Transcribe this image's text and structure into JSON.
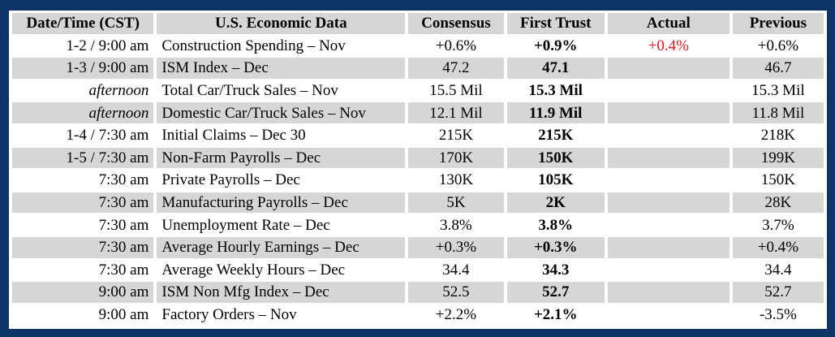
{
  "colors": {
    "border": "#0f3468",
    "shade": "#d6d6d6",
    "actual_highlight": "#e8141b"
  },
  "headers": {
    "date": "Date/Time (CST)",
    "name": "U.S. Economic Data",
    "consensus": "Consensus",
    "first_trust": "First Trust",
    "actual": "Actual",
    "previous": "Previous"
  },
  "rows": [
    {
      "date": "1-2 / 9:00 am",
      "italic": false,
      "name": "Construction Spending – Nov",
      "consensus": "+0.6%",
      "first_trust": "+0.9%",
      "actual": "+0.4%",
      "previous": "+0.6%",
      "shaded": false
    },
    {
      "date": "1-3 / 9:00 am",
      "italic": false,
      "name": "ISM Index – Dec",
      "consensus": "47.2",
      "first_trust": "47.1",
      "actual": "",
      "previous": "46.7",
      "shaded": true
    },
    {
      "date": "afternoon",
      "italic": true,
      "name": "Total Car/Truck Sales – Nov",
      "consensus": "15.5 Mil",
      "first_trust": "15.3 Mil",
      "actual": "",
      "previous": "15.3 Mil",
      "shaded": false
    },
    {
      "date": "afternoon",
      "italic": true,
      "name": "Domestic Car/Truck Sales – Nov",
      "consensus": "12.1 Mil",
      "first_trust": "11.9 Mil",
      "actual": "",
      "previous": "11.8 Mil",
      "shaded": true
    },
    {
      "date": "1-4 / 7:30 am",
      "italic": false,
      "name": "Initial Claims – Dec 30",
      "consensus": "215K",
      "first_trust": "215K",
      "actual": "",
      "previous": "218K",
      "shaded": false
    },
    {
      "date": "1-5 / 7:30 am",
      "italic": false,
      "name": "Non-Farm Payrolls – Dec",
      "consensus": "170K",
      "first_trust": "150K",
      "actual": "",
      "previous": "199K",
      "shaded": true
    },
    {
      "date": "7:30 am",
      "italic": false,
      "name": "Private Payrolls – Dec",
      "consensus": "130K",
      "first_trust": "105K",
      "actual": "",
      "previous": "150K",
      "shaded": false
    },
    {
      "date": "7:30 am",
      "italic": false,
      "name": "Manufacturing Payrolls – Dec",
      "consensus": "5K",
      "first_trust": "2K",
      "actual": "",
      "previous": "28K",
      "shaded": true
    },
    {
      "date": "7:30 am",
      "italic": false,
      "name": "Unemployment Rate – Dec",
      "consensus": "3.8%",
      "first_trust": "3.8%",
      "actual": "",
      "previous": "3.7%",
      "shaded": false
    },
    {
      "date": "7:30 am",
      "italic": false,
      "name": "Average Hourly Earnings – Dec",
      "consensus": "+0.3%",
      "first_trust": "+0.3%",
      "actual": "",
      "previous": "+0.4%",
      "shaded": true
    },
    {
      "date": "7:30 am",
      "italic": false,
      "name": "Average Weekly Hours – Dec",
      "consensus": "34.4",
      "first_trust": "34.3",
      "actual": "",
      "previous": "34.4",
      "shaded": false
    },
    {
      "date": "9:00 am",
      "italic": false,
      "name": "ISM Non Mfg Index – Dec",
      "consensus": "52.5",
      "first_trust": "52.7",
      "actual": "",
      "previous": "52.7",
      "shaded": true
    },
    {
      "date": "9:00 am",
      "italic": false,
      "name": "Factory Orders – Nov",
      "consensus": "+2.2%",
      "first_trust": "+2.1%",
      "actual": "",
      "previous": "-3.5%",
      "shaded": false
    }
  ]
}
